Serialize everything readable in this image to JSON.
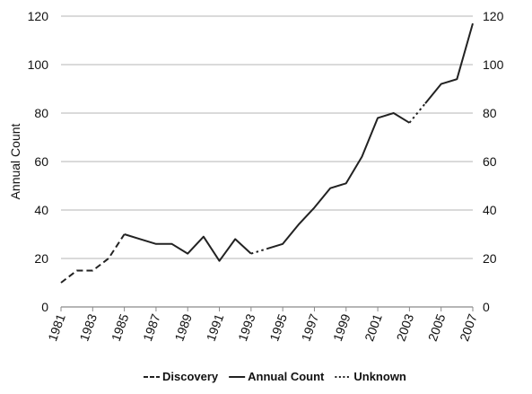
{
  "chart_data": {
    "type": "line",
    "title": "",
    "xlabel": "",
    "ylabel": "Annual Count",
    "xlim": [
      1981,
      2007
    ],
    "ylim": [
      0,
      120
    ],
    "y_ticks": [
      0,
      20,
      40,
      60,
      80,
      100,
      120
    ],
    "x_tick_labels": [
      "1981",
      "1983",
      "1985",
      "1987",
      "1989",
      "1991",
      "1993",
      "1995",
      "1997",
      "1999",
      "2001",
      "2003",
      "2005",
      "2007"
    ],
    "grid": "horizontal",
    "secondary_y_axis": true,
    "legend_position": "bottom",
    "series": [
      {
        "name": "Discovery",
        "style": "dashed",
        "color": "#222222",
        "x": [
          1981,
          1982,
          1983,
          1984,
          1985
        ],
        "y": [
          10,
          15,
          15,
          20,
          30
        ]
      },
      {
        "name": "Annual Count",
        "style": "solid",
        "color": "#222222",
        "x": [
          1985,
          1986,
          1987,
          1988,
          1989,
          1990,
          1991,
          1992,
          1993
        ],
        "y": [
          30,
          28,
          26,
          26,
          22,
          29,
          19,
          28,
          22
        ]
      },
      {
        "name": "Unknown",
        "style": "dotted",
        "color": "#222222",
        "x": [
          1993,
          1994
        ],
        "y": [
          22,
          24
        ]
      },
      {
        "name": "Annual Count",
        "style": "solid",
        "color": "#222222",
        "x": [
          1994,
          1995,
          1996,
          1997,
          1998,
          1999,
          2000,
          2001,
          2002,
          2003
        ],
        "y": [
          24,
          26,
          34,
          41,
          49,
          51,
          62,
          78,
          80,
          76
        ]
      },
      {
        "name": "Unknown",
        "style": "dotted",
        "color": "#222222",
        "x": [
          2003,
          2004
        ],
        "y": [
          76,
          84
        ]
      },
      {
        "name": "Annual Count",
        "style": "solid",
        "color": "#222222",
        "x": [
          2004,
          2005,
          2006,
          2007
        ],
        "y": [
          84,
          92,
          94,
          117
        ]
      }
    ],
    "legend": [
      {
        "label": "Discovery",
        "style": "dashed"
      },
      {
        "label": "Annual Count",
        "style": "solid"
      },
      {
        "label": "Unknown",
        "style": "dotted"
      }
    ]
  }
}
